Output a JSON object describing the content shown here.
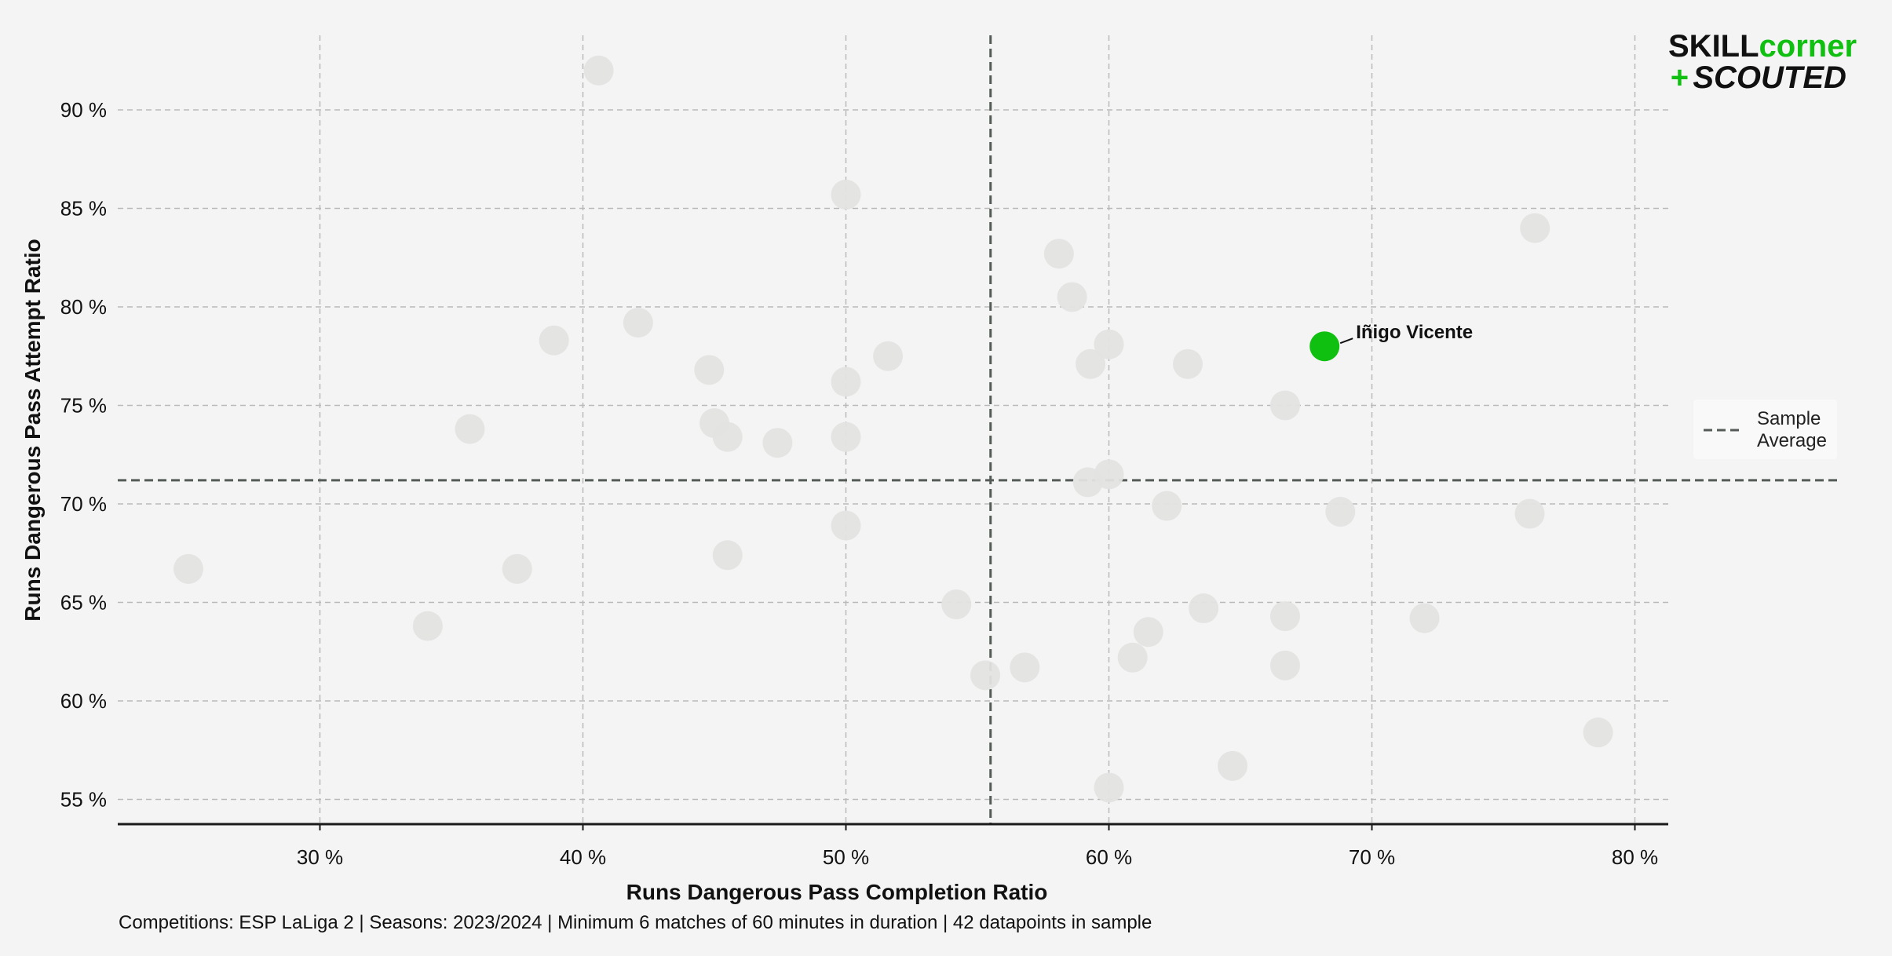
{
  "chart_data": {
    "type": "scatter",
    "xlabel": "Runs Dangerous Pass Completion Ratio",
    "ylabel": "Runs Dangerous Pass Attempt Ratio",
    "xlim": [
      22.3,
      81.2
    ],
    "ylim": [
      53.7,
      94.2
    ],
    "xticks": [
      30,
      40,
      50,
      60,
      70,
      80
    ],
    "yticks": [
      55,
      60,
      65,
      70,
      75,
      80,
      85,
      90
    ],
    "xtick_labels": [
      "30 %",
      "40 %",
      "50 %",
      "60 %",
      "70 %",
      "80 %"
    ],
    "ytick_labels": [
      "55 %",
      "60 %",
      "65 %",
      "70 %",
      "75 %",
      "80 %",
      "85 %",
      "90 %"
    ],
    "grid": true,
    "legend_placement": "right",
    "legend_label": "Sample Average",
    "sample_average": {
      "x": 55.5,
      "y": 71.2
    },
    "points": [
      {
        "x": 40.6,
        "y": 92.0
      },
      {
        "x": 50.0,
        "y": 85.7
      },
      {
        "x": 76.2,
        "y": 84.0
      },
      {
        "x": 58.1,
        "y": 82.7
      },
      {
        "x": 58.6,
        "y": 80.5
      },
      {
        "x": 42.1,
        "y": 79.2
      },
      {
        "x": 38.9,
        "y": 78.3
      },
      {
        "x": 60.0,
        "y": 78.1
      },
      {
        "x": 51.6,
        "y": 77.5
      },
      {
        "x": 63.0,
        "y": 77.1
      },
      {
        "x": 59.3,
        "y": 77.1
      },
      {
        "x": 44.8,
        "y": 76.8
      },
      {
        "x": 50.0,
        "y": 76.2
      },
      {
        "x": 66.7,
        "y": 75.0
      },
      {
        "x": 45.0,
        "y": 74.1
      },
      {
        "x": 35.7,
        "y": 73.8
      },
      {
        "x": 45.5,
        "y": 73.4
      },
      {
        "x": 50.0,
        "y": 73.4
      },
      {
        "x": 47.4,
        "y": 73.1
      },
      {
        "x": 60.0,
        "y": 71.5
      },
      {
        "x": 59.2,
        "y": 71.1
      },
      {
        "x": 62.2,
        "y": 69.9
      },
      {
        "x": 68.8,
        "y": 69.6
      },
      {
        "x": 76.0,
        "y": 69.5
      },
      {
        "x": 50.0,
        "y": 68.9
      },
      {
        "x": 45.5,
        "y": 67.4
      },
      {
        "x": 25.0,
        "y": 66.7
      },
      {
        "x": 37.5,
        "y": 66.7
      },
      {
        "x": 54.2,
        "y": 64.9
      },
      {
        "x": 63.6,
        "y": 64.7
      },
      {
        "x": 66.7,
        "y": 64.3
      },
      {
        "x": 72.0,
        "y": 64.2
      },
      {
        "x": 34.1,
        "y": 63.8
      },
      {
        "x": 61.5,
        "y": 63.5
      },
      {
        "x": 60.9,
        "y": 62.2
      },
      {
        "x": 66.7,
        "y": 61.8
      },
      {
        "x": 56.8,
        "y": 61.7
      },
      {
        "x": 55.3,
        "y": 61.3
      },
      {
        "x": 78.6,
        "y": 58.4
      },
      {
        "x": 64.7,
        "y": 56.7
      },
      {
        "x": 60.0,
        "y": 55.6
      }
    ],
    "highlight": {
      "name": "Iñigo Vicente",
      "x": 68.2,
      "y": 78.0
    },
    "footnote": "Competitions: ESP LaLiga 2 | Seasons: 2023/2024 | Minimum 6 matches of 60 minutes in duration | 42 datapoints in sample",
    "colors": {
      "background": "#f4f4f4",
      "point": "#e3e3e1",
      "highlight": "#10c010",
      "average_line": "#555b57",
      "grid": "#b9b9b9",
      "axis": "#1a1a1a",
      "logo_dark": "#111111",
      "logo_green": "#10c010"
    }
  },
  "logo": {
    "line1_a": "SKILL",
    "line1_b": "corner",
    "line2_plus": "+",
    "line2_text": "SCOUTED"
  },
  "legend": {
    "line1": "Sample",
    "line2": "Average"
  }
}
